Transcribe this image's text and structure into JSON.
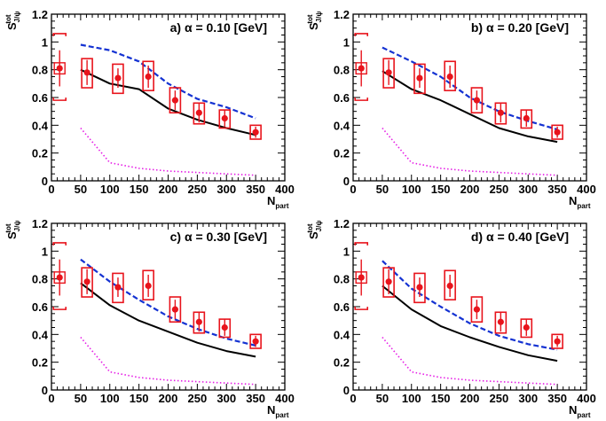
{
  "figure": {
    "ylabel_main": "S",
    "ylabel_sup": "tot",
    "ylabel_sub": "J/ψ",
    "xlabel_main": "N",
    "xlabel_sub": "part",
    "colors": {
      "data": "#e8141c",
      "dashed": "#1432d2",
      "solid": "#000000",
      "dotted": "#e61ee6",
      "axes": "#000000"
    }
  },
  "chart_data": [
    {
      "type": "line",
      "title": "a) α = 0.10 [GeV]",
      "xlim": [
        0,
        400
      ],
      "ylim": [
        0,
        1.2
      ],
      "xticks": [
        "0",
        "50",
        "100",
        "150",
        "200",
        "250",
        "300",
        "350",
        "400"
      ],
      "yticks": [
        "0",
        "0.2",
        "0.4",
        "0.6",
        "0.8",
        "1",
        "1.2"
      ],
      "data_points": {
        "name": "data",
        "x": [
          14,
          61,
          114,
          166,
          212,
          253,
          297,
          350
        ],
        "y": [
          0.81,
          0.78,
          0.74,
          0.75,
          0.58,
          0.49,
          0.45,
          0.35
        ],
        "yerr": [
          0.13,
          0.09,
          0.07,
          0.08,
          0.07,
          0.07,
          0.06,
          0.04
        ],
        "box_low": [
          0.58,
          0.67,
          0.63,
          0.65,
          0.49,
          0.41,
          0.38,
          0.3
        ],
        "box_high": [
          1.06,
          0.88,
          0.84,
          0.86,
          0.67,
          0.56,
          0.51,
          0.4
        ]
      },
      "series": [
        {
          "style": "dashed",
          "x": [
            50,
            100,
            150,
            200,
            250,
            300,
            350
          ],
          "y": [
            0.98,
            0.94,
            0.86,
            0.7,
            0.59,
            0.53,
            0.45
          ]
        },
        {
          "style": "solid",
          "x": [
            50,
            100,
            150,
            200,
            250,
            300,
            350
          ],
          "y": [
            0.8,
            0.7,
            0.66,
            0.52,
            0.44,
            0.38,
            0.33
          ]
        },
        {
          "style": "dotted",
          "x": [
            50,
            100,
            150,
            200,
            250,
            300,
            350
          ],
          "y": [
            0.38,
            0.13,
            0.09,
            0.07,
            0.06,
            0.05,
            0.04
          ]
        }
      ]
    },
    {
      "type": "line",
      "title": "b) α = 0.20 [GeV]",
      "xlim": [
        0,
        400
      ],
      "ylim": [
        0,
        1.2
      ],
      "xticks": [
        "0",
        "50",
        "100",
        "150",
        "200",
        "250",
        "300",
        "350",
        "400"
      ],
      "yticks": [
        "0",
        "0.2",
        "0.4",
        "0.6",
        "0.8",
        "1",
        "1.2"
      ],
      "data_points": {
        "name": "data",
        "x": [
          14,
          61,
          114,
          166,
          212,
          253,
          297,
          350
        ],
        "y": [
          0.81,
          0.78,
          0.74,
          0.75,
          0.58,
          0.49,
          0.45,
          0.35
        ],
        "yerr": [
          0.13,
          0.09,
          0.07,
          0.08,
          0.07,
          0.07,
          0.06,
          0.04
        ],
        "box_low": [
          0.58,
          0.67,
          0.63,
          0.65,
          0.49,
          0.41,
          0.38,
          0.3
        ],
        "box_high": [
          1.06,
          0.88,
          0.84,
          0.86,
          0.67,
          0.56,
          0.51,
          0.4
        ]
      },
      "series": [
        {
          "style": "dashed",
          "x": [
            50,
            100,
            150,
            200,
            250,
            300,
            350
          ],
          "y": [
            0.96,
            0.86,
            0.75,
            0.6,
            0.5,
            0.43,
            0.37
          ]
        },
        {
          "style": "solid",
          "x": [
            50,
            100,
            150,
            200,
            250,
            300,
            350
          ],
          "y": [
            0.79,
            0.66,
            0.58,
            0.48,
            0.38,
            0.32,
            0.28
          ]
        },
        {
          "style": "dotted",
          "x": [
            50,
            100,
            150,
            200,
            250,
            300,
            350
          ],
          "y": [
            0.38,
            0.13,
            0.09,
            0.07,
            0.06,
            0.05,
            0.04
          ]
        }
      ]
    },
    {
      "type": "line",
      "title": "c) α = 0.30 [GeV]",
      "xlim": [
        0,
        400
      ],
      "ylim": [
        0,
        1.2
      ],
      "xticks": [
        "0",
        "50",
        "100",
        "150",
        "200",
        "250",
        "300",
        "350",
        "400"
      ],
      "yticks": [
        "0",
        "0.2",
        "0.4",
        "0.6",
        "0.8",
        "1",
        "1.2"
      ],
      "data_points": {
        "name": "data",
        "x": [
          14,
          61,
          114,
          166,
          212,
          253,
          297,
          350
        ],
        "y": [
          0.81,
          0.78,
          0.74,
          0.75,
          0.58,
          0.49,
          0.45,
          0.35
        ],
        "yerr": [
          0.13,
          0.09,
          0.07,
          0.08,
          0.07,
          0.07,
          0.06,
          0.04
        ],
        "box_low": [
          0.58,
          0.67,
          0.63,
          0.65,
          0.49,
          0.41,
          0.38,
          0.3
        ],
        "box_high": [
          1.06,
          0.88,
          0.84,
          0.86,
          0.67,
          0.56,
          0.51,
          0.4
        ]
      },
      "series": [
        {
          "style": "dashed",
          "x": [
            50,
            100,
            150,
            200,
            250,
            300,
            350
          ],
          "y": [
            0.94,
            0.78,
            0.65,
            0.53,
            0.44,
            0.37,
            0.32
          ]
        },
        {
          "style": "solid",
          "x": [
            50,
            100,
            150,
            200,
            250,
            300,
            350
          ],
          "y": [
            0.77,
            0.61,
            0.5,
            0.42,
            0.34,
            0.28,
            0.24
          ]
        },
        {
          "style": "dotted",
          "x": [
            50,
            100,
            150,
            200,
            250,
            300,
            350
          ],
          "y": [
            0.38,
            0.13,
            0.09,
            0.07,
            0.06,
            0.05,
            0.04
          ]
        }
      ]
    },
    {
      "type": "line",
      "title": "d) α = 0.40 [GeV]",
      "xlim": [
        0,
        400
      ],
      "ylim": [
        0,
        1.2
      ],
      "xticks": [
        "0",
        "50",
        "100",
        "150",
        "200",
        "250",
        "300",
        "350",
        "400"
      ],
      "yticks": [
        "0",
        "0.2",
        "0.4",
        "0.6",
        "0.8",
        "1",
        "1.2"
      ],
      "data_points": {
        "name": "data",
        "x": [
          14,
          61,
          114,
          166,
          212,
          253,
          297,
          350
        ],
        "y": [
          0.81,
          0.78,
          0.74,
          0.75,
          0.58,
          0.49,
          0.45,
          0.35
        ],
        "yerr": [
          0.13,
          0.09,
          0.07,
          0.08,
          0.07,
          0.07,
          0.06,
          0.04
        ],
        "box_low": [
          0.58,
          0.67,
          0.63,
          0.65,
          0.49,
          0.41,
          0.38,
          0.3
        ],
        "box_high": [
          1.06,
          0.88,
          0.84,
          0.86,
          0.67,
          0.56,
          0.51,
          0.4
        ]
      },
      "series": [
        {
          "style": "dashed",
          "x": [
            50,
            100,
            150,
            200,
            250,
            300,
            350
          ],
          "y": [
            0.93,
            0.73,
            0.6,
            0.48,
            0.39,
            0.33,
            0.29
          ]
        },
        {
          "style": "solid",
          "x": [
            50,
            100,
            150,
            200,
            250,
            300,
            350
          ],
          "y": [
            0.75,
            0.58,
            0.46,
            0.38,
            0.31,
            0.25,
            0.21
          ]
        },
        {
          "style": "dotted",
          "x": [
            50,
            100,
            150,
            200,
            250,
            300,
            350
          ],
          "y": [
            0.38,
            0.13,
            0.09,
            0.07,
            0.06,
            0.05,
            0.04
          ]
        }
      ]
    }
  ]
}
